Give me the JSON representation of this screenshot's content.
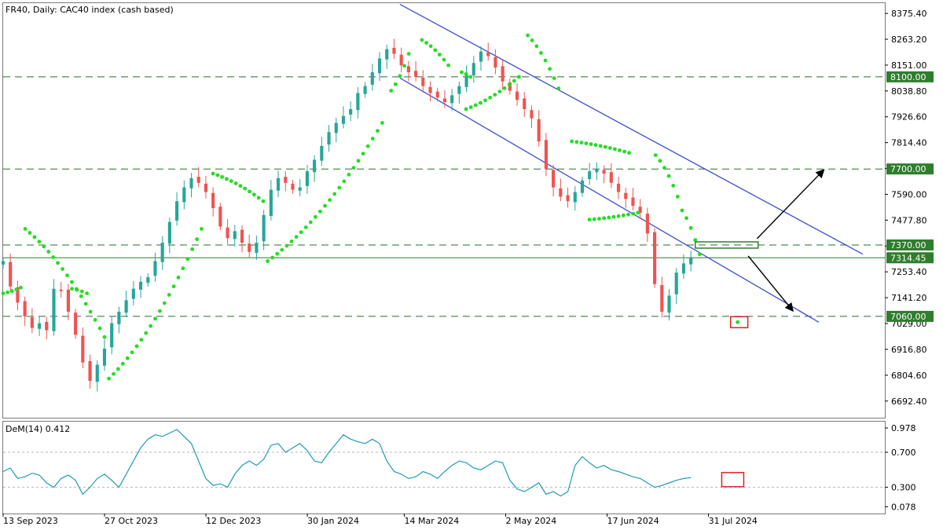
{
  "chart_data": [
    {
      "type": "candlestick",
      "title": "FR40, Daily:  CAC40 index (cash based)",
      "y_ticks": [
        "8375.40",
        "8263.20",
        "8151.00",
        "8038.80",
        "7926.60",
        "7814.40",
        "7702.20",
        "7590.00",
        "7477.80",
        "7365.60",
        "7253.40",
        "7141.20",
        "7029.00",
        "6916.80",
        "6804.60",
        "6692.40"
      ],
      "x_ticks": [
        "13 Sep 2023",
        "27 Oct 2023",
        "12 Dec 2023",
        "30 Jan 2024",
        "14 Mar 2024",
        "2 May 2024",
        "17 Jun 2024",
        "31 Jul 2024"
      ],
      "ylim": [
        6620,
        8420
      ],
      "levels": [
        {
          "label": "8100.00",
          "value": 8100.0,
          "style": "dashed"
        },
        {
          "label": "7700.00",
          "value": 7700.0,
          "style": "dashed"
        },
        {
          "label": "7370.00",
          "value": 7370.0,
          "style": "dashed"
        },
        {
          "label": "7314.45",
          "value": 7314.45,
          "style": "solid"
        },
        {
          "label": "7060.00",
          "value": 7060.0,
          "style": "dashed"
        }
      ],
      "channel": {
        "upper": [
          [
            0.45,
            8415
          ],
          [
            0.975,
            7330
          ]
        ],
        "lower": [
          [
            0.45,
            8095
          ],
          [
            0.925,
            7035
          ]
        ]
      },
      "close_series": [
        7300,
        7190,
        7120,
        7060,
        7010,
        7030,
        7000,
        7180,
        7170,
        7080,
        6980,
        6860,
        6780,
        6850,
        6920,
        7030,
        7080,
        7130,
        7180,
        7210,
        7230,
        7300,
        7380,
        7470,
        7560,
        7620,
        7660,
        7640,
        7600,
        7530,
        7450,
        7400,
        7430,
        7380,
        7340,
        7380,
        7500,
        7610,
        7660,
        7640,
        7610,
        7620,
        7690,
        7740,
        7800,
        7860,
        7900,
        7930,
        7960,
        8030,
        8060,
        8120,
        8180,
        8220,
        8200,
        8150,
        8120,
        8100,
        8060,
        8030,
        8010,
        7990,
        8020,
        8060,
        8110,
        8160,
        8210,
        8190,
        8140,
        8080,
        8040,
        8000,
        7960,
        7920,
        7820,
        7700,
        7620,
        7580,
        7560,
        7600,
        7650,
        7690,
        7700,
        7680,
        7640,
        7600,
        7570,
        7540,
        7510,
        7420,
        7200,
        7080,
        7150,
        7250,
        7290,
        7314
      ],
      "x_start_frac": 0.0,
      "x_end_frac": 0.78,
      "sar_dots": [
        {
          "x0": 0.0,
          "v0": 7160,
          "x1": 0.02,
          "v1": 7185
        },
        {
          "x0": 0.025,
          "v0": 7440,
          "x1": 0.115,
          "v1": 6970
        },
        {
          "x0": 0.078,
          "v0": 7180,
          "x1": 0.095,
          "v1": 7160
        },
        {
          "x0": 0.12,
          "v0": 6790,
          "x1": 0.225,
          "v1": 7440
        },
        {
          "x0": 0.238,
          "v0": 7680,
          "x1": 0.295,
          "v1": 7560
        },
        {
          "x0": 0.3,
          "v0": 7300,
          "x1": 0.43,
          "v1": 7900
        },
        {
          "x0": 0.44,
          "v0": 8040,
          "x1": 0.46,
          "v1": 8200
        },
        {
          "x0": 0.475,
          "v0": 8260,
          "x1": 0.505,
          "v1": 8150
        },
        {
          "x0": 0.52,
          "v0": 8120,
          "x1": 0.53,
          "v1": 8100
        },
        {
          "x0": 0.525,
          "v0": 7960,
          "x1": 0.585,
          "v1": 8100
        },
        {
          "x0": 0.595,
          "v0": 8280,
          "x1": 0.63,
          "v1": 8050
        },
        {
          "x0": 0.645,
          "v0": 7820,
          "x1": 0.71,
          "v1": 7770
        },
        {
          "x0": 0.665,
          "v0": 7480,
          "x1": 0.72,
          "v1": 7510
        },
        {
          "x0": 0.74,
          "v0": 7760,
          "x1": 0.765,
          "v1": 7580
        },
        {
          "x0": 0.77,
          "v0": 7520,
          "x1": 0.79,
          "v1": 7330
        }
      ]
    },
    {
      "type": "line",
      "title": "DeM(14) 0.412",
      "y_ticks": [
        "0.978",
        "0.700",
        "0.300",
        "0.078"
      ],
      "ylim": [
        0.0,
        1.05
      ],
      "levels": [
        {
          "value": 0.7,
          "style": "dashed"
        },
        {
          "value": 0.3,
          "style": "dashed"
        }
      ],
      "values": [
        0.48,
        0.52,
        0.4,
        0.42,
        0.46,
        0.44,
        0.35,
        0.3,
        0.4,
        0.44,
        0.38,
        0.22,
        0.3,
        0.4,
        0.45,
        0.38,
        0.3,
        0.45,
        0.6,
        0.75,
        0.85,
        0.9,
        0.88,
        0.92,
        0.96,
        0.88,
        0.8,
        0.6,
        0.4,
        0.32,
        0.34,
        0.3,
        0.45,
        0.55,
        0.6,
        0.55,
        0.62,
        0.78,
        0.8,
        0.7,
        0.75,
        0.8,
        0.72,
        0.6,
        0.58,
        0.7,
        0.8,
        0.9,
        0.85,
        0.82,
        0.8,
        0.85,
        0.8,
        0.6,
        0.48,
        0.45,
        0.4,
        0.42,
        0.48,
        0.45,
        0.4,
        0.48,
        0.55,
        0.6,
        0.58,
        0.52,
        0.5,
        0.55,
        0.6,
        0.58,
        0.38,
        0.28,
        0.25,
        0.3,
        0.35,
        0.22,
        0.25,
        0.2,
        0.25,
        0.55,
        0.65,
        0.58,
        0.52,
        0.55,
        0.5,
        0.48,
        0.45,
        0.42,
        0.4,
        0.35,
        0.3,
        0.32,
        0.35,
        0.38,
        0.4,
        0.41
      ],
      "x_start_frac": 0.0,
      "x_end_frac": 0.78
    }
  ],
  "annotations": {
    "arrows": [
      "up-right",
      "down-right"
    ],
    "highlight_boxes": 3
  },
  "colors": {
    "bull": "#26a69a",
    "bear": "#ef5350",
    "sar": "#22dd22",
    "channel": "#3a4fd0",
    "level_box": "#2f7d2f",
    "line_series": "#1f9bb5",
    "marker": "#e02020"
  }
}
